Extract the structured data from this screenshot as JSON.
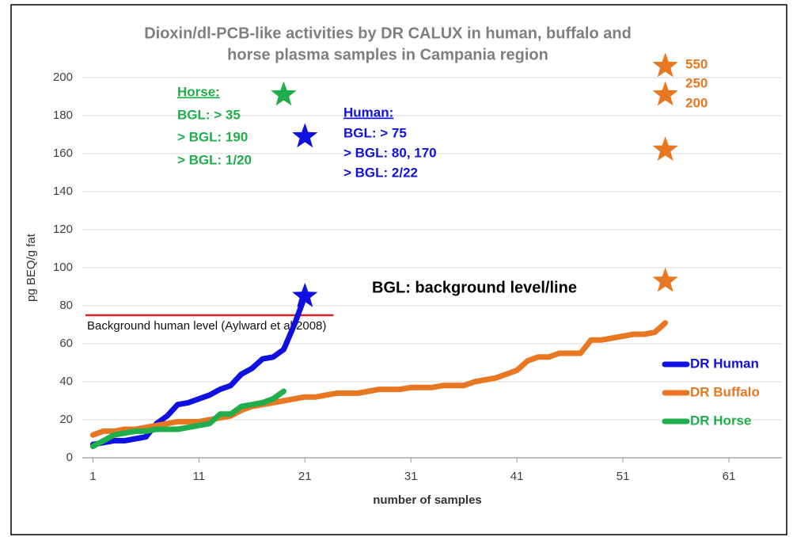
{
  "chart_data": {
    "type": "line",
    "title": [
      "Dioxin/dl-PCB-like activities by DR CALUX  in human, buffalo and",
      "horse plasma samples in Campania region"
    ],
    "xlabel": "number of samples",
    "ylabel": "pg BEQ/g fat",
    "xlim": [
      0,
      66
    ],
    "ylim": [
      0,
      200
    ],
    "xticks": [
      1,
      11,
      21,
      31,
      41,
      51,
      61
    ],
    "yticks": [
      0,
      20,
      40,
      60,
      80,
      100,
      120,
      140,
      160,
      180,
      200
    ],
    "grid": true,
    "legend": "right",
    "series": [
      {
        "name": "DR Human",
        "color": "#1010e0",
        "x": [
          1,
          2,
          3,
          4,
          5,
          6,
          7,
          8,
          9,
          10,
          11,
          12,
          13,
          14,
          15,
          16,
          17,
          18,
          19,
          20,
          21
        ],
        "values": [
          7,
          8,
          9,
          9,
          10,
          11,
          18,
          22,
          28,
          29,
          31,
          33,
          36,
          38,
          44,
          47,
          52,
          53,
          57,
          70,
          85
        ]
      },
      {
        "name": "DR Buffalo",
        "color": "#e87722",
        "x": [
          1,
          2,
          3,
          4,
          5,
          6,
          7,
          8,
          9,
          10,
          11,
          12,
          13,
          14,
          15,
          16,
          17,
          18,
          19,
          20,
          21,
          22,
          23,
          24,
          25,
          26,
          27,
          28,
          29,
          30,
          31,
          32,
          33,
          34,
          35,
          36,
          37,
          38,
          39,
          40,
          41,
          42,
          43,
          44,
          45,
          46,
          47,
          48,
          49,
          50,
          51,
          52,
          53,
          54,
          55
        ],
        "values": [
          12,
          14,
          14,
          15,
          15,
          16,
          17,
          18,
          19,
          19,
          19,
          20,
          21,
          22,
          25,
          27,
          28,
          29,
          30,
          31,
          32,
          32,
          33,
          34,
          34,
          34,
          35,
          36,
          36,
          36,
          37,
          37,
          37,
          38,
          38,
          38,
          40,
          41,
          42,
          44,
          46,
          51,
          53,
          53,
          55,
          55,
          55,
          62,
          62,
          63,
          64,
          65,
          65,
          66,
          71
        ]
      },
      {
        "name": "DR Horse",
        "color": "#1fae4b",
        "x": [
          1,
          2,
          3,
          4,
          5,
          6,
          7,
          8,
          9,
          10,
          11,
          12,
          13,
          14,
          15,
          16,
          17,
          18,
          19
        ],
        "values": [
          6,
          9,
          12,
          13,
          14,
          14,
          15,
          15,
          15,
          16,
          17,
          18,
          23,
          23,
          27,
          28,
          29,
          31,
          35
        ]
      }
    ],
    "stars": [
      {
        "x": 19,
        "y": 191,
        "color": "#1fae4b"
      },
      {
        "x": 21,
        "y": 169,
        "color": "#1010e0"
      },
      {
        "x": 21,
        "y": 85,
        "color": "#1010e0"
      },
      {
        "x": 55,
        "y": 206,
        "color": "#e87722"
      },
      {
        "x": 55,
        "y": 191,
        "color": "#e87722"
      },
      {
        "x": 55,
        "y": 162,
        "color": "#e87722"
      },
      {
        "x": 55,
        "y": 93,
        "color": "#e87722"
      }
    ],
    "reference_line": {
      "y": 75,
      "xmin": 0.3,
      "xmax": 23.7,
      "color": "#e02020",
      "label": "Background human level (Aylward et al 2008)"
    },
    "annotations": [
      {
        "text": "Horse:",
        "color": "#1fae4b",
        "underline": true
      },
      {
        "text": "BGL: > 35",
        "color": "#1fae4b"
      },
      {
        "text": "> BGL: 190",
        "color": "#1fae4b"
      },
      {
        "text": "> BGL: 1/20",
        "color": "#1fae4b"
      },
      {
        "text": "Human:",
        "color": "#1010e0",
        "underline": true
      },
      {
        "text": "BGL: > 75",
        "color": "#1010e0"
      },
      {
        "text": "> BGL: 80, 170",
        "color": "#1010e0"
      },
      {
        "text": "> BGL: 2/22",
        "color": "#1010e0"
      },
      {
        "text": "550",
        "color": "#e87722"
      },
      {
        "text": "250",
        "color": "#e87722"
      },
      {
        "text": "200",
        "color": "#e87722"
      },
      {
        "text": "BGL: background level/line",
        "color": "#000000"
      }
    ]
  }
}
